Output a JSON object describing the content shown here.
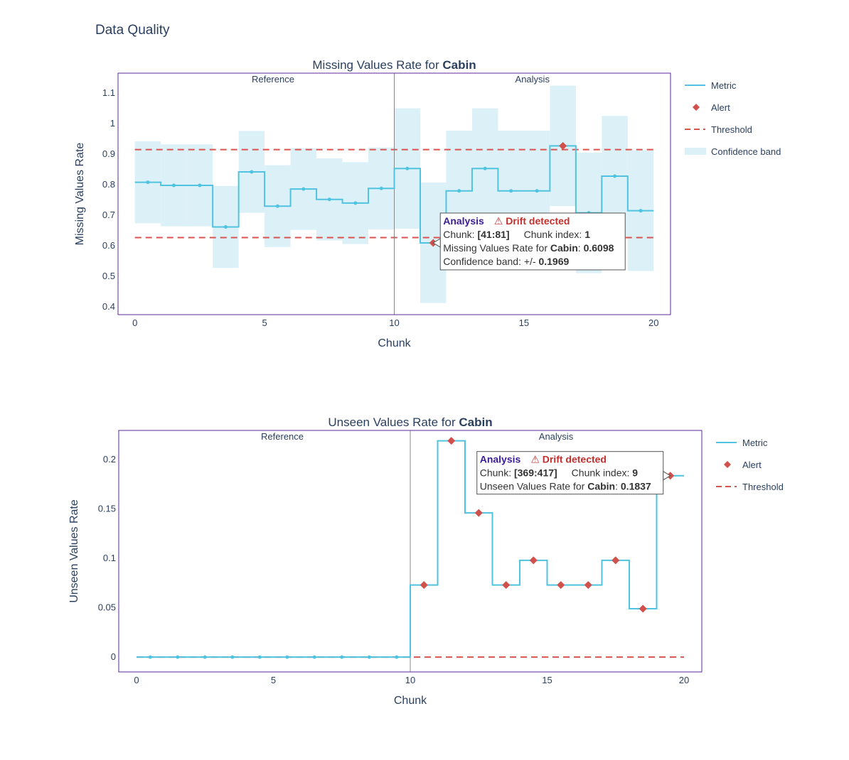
{
  "page": {
    "title": "Data Quality"
  },
  "colors": {
    "metric": "#4fc3e0",
    "alert": "#d0504c",
    "threshold": "#d9534f",
    "band": "#dcf0f8",
    "frame": "#5b2a9e",
    "divider": "#888888",
    "analysis": "#3b1d96",
    "drift": "#c0302c"
  },
  "legend": {
    "metric": "Metric",
    "alert": "Alert",
    "threshold": "Threshold",
    "band": "Confidence band"
  },
  "chart_data": [
    {
      "type": "line",
      "title_prefix": "Missing Values Rate for ",
      "title_bold": "Cabin",
      "xlabel": "Chunk",
      "ylabel": "Missing Values Rate",
      "xlim": [
        -0.65,
        20.65
      ],
      "ylim": [
        0.375,
        1.165
      ],
      "xticks": [
        0,
        5,
        10,
        15,
        20
      ],
      "yticks": [
        0.4,
        0.5,
        0.6,
        0.7,
        0.8,
        0.9,
        1,
        1.1
      ],
      "ytick_labels": [
        "0.4",
        "0.5",
        "0.6",
        "0.7",
        "0.8",
        "0.9",
        "1",
        "1.1"
      ],
      "region_labels": {
        "reference": "Reference",
        "analysis": "Analysis"
      },
      "divider_x": 10,
      "thresholds": [
        0.915,
        0.627
      ],
      "values": [
        0.808,
        0.798,
        0.798,
        0.662,
        0.842,
        0.73,
        0.786,
        0.752,
        0.74,
        0.788,
        0.853,
        0.6098,
        0.78,
        0.853,
        0.78,
        0.78,
        0.927,
        0.708,
        0.828,
        0.715
      ],
      "band_upper": [
        0.942,
        0.932,
        0.932,
        0.796,
        0.976,
        0.864,
        0.92,
        0.886,
        0.874,
        0.922,
        1.05,
        0.807,
        0.977,
        1.05,
        0.977,
        0.977,
        1.124,
        0.905,
        1.025,
        0.912
      ],
      "band_lower": [
        0.674,
        0.664,
        0.664,
        0.528,
        0.708,
        0.596,
        0.652,
        0.618,
        0.606,
        0.654,
        0.656,
        0.413,
        0.583,
        0.656,
        0.583,
        0.583,
        0.73,
        0.511,
        0.631,
        0.518
      ],
      "alerts": [
        11,
        16
      ],
      "tooltip": {
        "chunk_index": 11,
        "analysis_label": "Analysis",
        "drift_label": "⚠ Drift detected",
        "line2_a": "Chunk: ",
        "line2_b": "[41:81]",
        "line2_c": "Chunk index: ",
        "line2_d": "1",
        "line3_a": "Missing Values Rate for ",
        "line3_b": "Cabin",
        "line3_c": ": ",
        "line3_d": "0.6098",
        "line4_a": "Confidence band: +/- ",
        "line4_b": "0.1969"
      },
      "legend_items": [
        "metric",
        "alert",
        "threshold",
        "band"
      ]
    },
    {
      "type": "line",
      "title_prefix": "Unseen Values Rate for ",
      "title_bold": "Cabin",
      "xlabel": "Chunk",
      "ylabel": "Unseen Values Rate",
      "xlim": [
        -0.65,
        20.65
      ],
      "ylim": [
        -0.015,
        0.2295
      ],
      "xticks": [
        0,
        5,
        10,
        15,
        20
      ],
      "yticks": [
        0,
        0.05,
        0.1,
        0.15,
        0.2
      ],
      "ytick_labels": [
        "0",
        "0.05",
        "0.1",
        "0.15",
        "0.2"
      ],
      "region_labels": {
        "reference": "Reference",
        "analysis": "Analysis"
      },
      "divider_x": 10,
      "thresholds": [
        0
      ],
      "values": [
        0,
        0,
        0,
        0,
        0,
        0,
        0,
        0,
        0,
        0,
        0.073,
        0.219,
        0.146,
        0.073,
        0.098,
        0.073,
        0.073,
        0.098,
        0.049,
        0.1837
      ],
      "alerts": [
        10,
        11,
        12,
        13,
        14,
        15,
        16,
        17,
        18,
        19
      ],
      "tooltip": {
        "chunk_index": 19,
        "analysis_label": "Analysis",
        "drift_label": "⚠ Drift detected",
        "line2_a": "Chunk: ",
        "line2_b": "[369:417]",
        "line2_c": "Chunk index: ",
        "line2_d": "9",
        "line3_a": "Unseen Values Rate for ",
        "line3_b": "Cabin",
        "line3_c": ": ",
        "line3_d": "0.1837"
      },
      "legend_items": [
        "metric",
        "alert",
        "threshold"
      ]
    }
  ]
}
